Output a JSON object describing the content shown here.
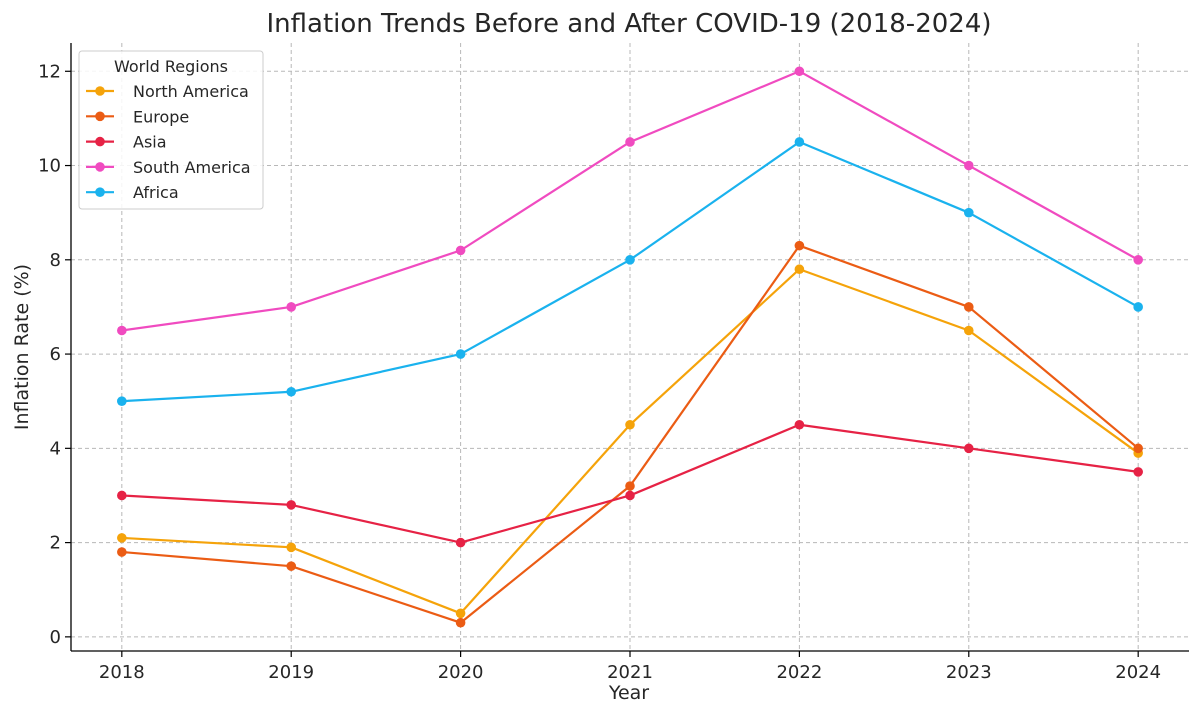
{
  "chart_data": {
    "type": "line",
    "title": "Inflation Trends Before and After COVID-19 (2018-2024)",
    "xlabel": "Year",
    "ylabel": "Inflation Rate (%)",
    "x": [
      2018,
      2019,
      2020,
      2021,
      2022,
      2023,
      2024
    ],
    "xlim": [
      2017.7,
      2024.3
    ],
    "ylim": [
      -0.3,
      12.6
    ],
    "yticks": [
      0,
      2,
      4,
      6,
      8,
      10,
      12
    ],
    "grid": true,
    "legend": {
      "title": "World Regions",
      "placement": "top-left"
    },
    "series": [
      {
        "name": "North America",
        "color": "#f5a30a",
        "values": [
          2.1,
          1.9,
          0.5,
          4.5,
          7.8,
          6.5,
          3.9
        ]
      },
      {
        "name": "Europe",
        "color": "#eb5c14",
        "values": [
          1.8,
          1.5,
          0.3,
          3.2,
          8.3,
          7.0,
          4.0
        ]
      },
      {
        "name": "Asia",
        "color": "#e62245",
        "values": [
          3.0,
          2.8,
          2.0,
          3.0,
          4.5,
          4.0,
          3.5
        ]
      },
      {
        "name": "South America",
        "color": "#f04bc0",
        "values": [
          6.5,
          7.0,
          8.2,
          10.5,
          12.0,
          10.0,
          8.0
        ]
      },
      {
        "name": "Africa",
        "color": "#1ab2ee",
        "values": [
          5.0,
          5.2,
          6.0,
          8.0,
          10.5,
          9.0,
          7.0
        ]
      }
    ]
  }
}
